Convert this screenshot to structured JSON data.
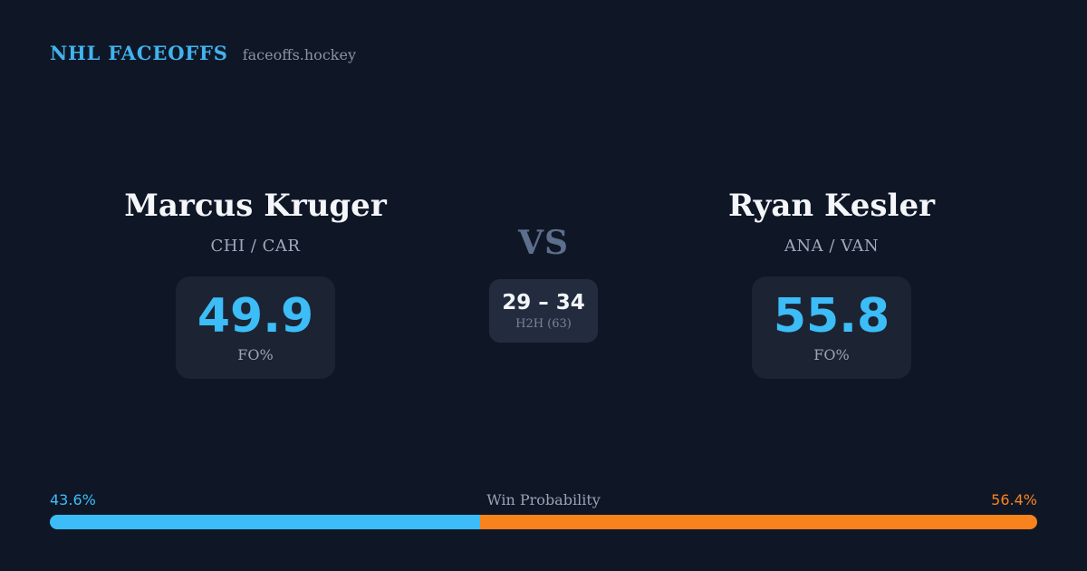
{
  "header": {
    "brand": "NHL FACEOFFS",
    "site": "faceoffs.hockey"
  },
  "players": {
    "left": {
      "name": "Marcus Kruger",
      "teams": "CHI / CAR",
      "fo_pct": "49.9",
      "fo_label": "FO%"
    },
    "right": {
      "name": "Ryan Kesler",
      "teams": "ANA / VAN",
      "fo_pct": "55.8",
      "fo_label": "FO%"
    }
  },
  "center": {
    "vs_label": "VS",
    "h2h_score": "29 – 34",
    "h2h_sub": "H2H (63)",
    "h2h_total": 63
  },
  "win_probability": {
    "title": "Win Probability",
    "left_pct_label": "43.6%",
    "right_pct_label": "56.4%",
    "left_value": 43.6,
    "right_value": 56.4
  },
  "colors": {
    "background": "#0f1726",
    "stat_card_bg": "#1c2433",
    "h2h_card_bg": "#232c3e",
    "brand_blue": "#41b3ee",
    "accent_blue": "#3cbdf8",
    "accent_orange": "#f8831d",
    "name_white": "#f4f6f9",
    "muted_gray": "#9fa9bd",
    "vs_gray": "#5d6f8c"
  }
}
